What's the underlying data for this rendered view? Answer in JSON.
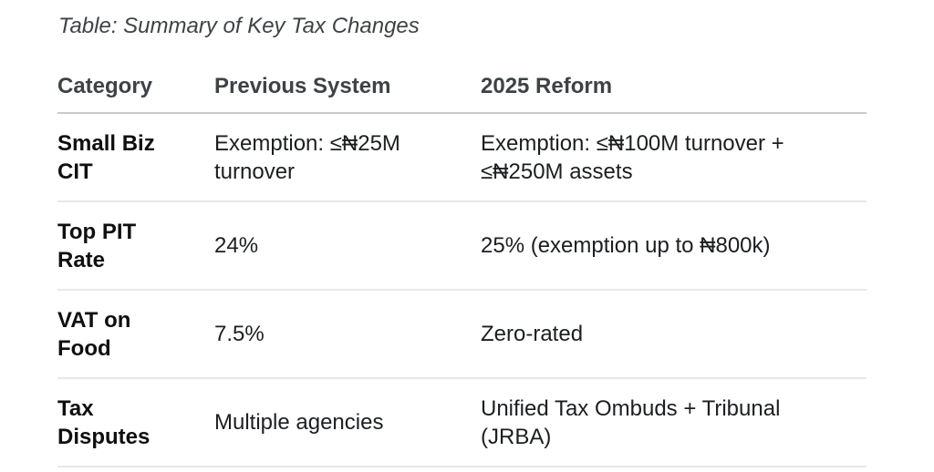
{
  "title": "Table: Summary of Key Tax Changes",
  "table": {
    "columns": {
      "category": "Category",
      "previous": "Previous System",
      "reform": "2025 Reform"
    },
    "rows": [
      {
        "category": "Small Biz\nCIT",
        "previous": "Exemption: ≤₦25M\nturnover",
        "reform": "Exemption: ≤₦100M turnover +\n≤₦250M assets"
      },
      {
        "category": "Top PIT\nRate",
        "previous": "24%",
        "reform": "25% (exemption up to ₦800k)"
      },
      {
        "category": "VAT on\nFood",
        "previous": "7.5%",
        "reform": "Zero-rated"
      },
      {
        "category": "Tax\nDisputes",
        "previous": "Multiple agencies",
        "reform": "Unified Tax Ombuds + Tribunal\n(JRBA)"
      }
    ]
  },
  "colors": {
    "background": "#ffffff",
    "title_text": "#3f4245",
    "header_text": "#3e4246",
    "category_text": "#0f0f0f",
    "body_text": "#1c1e21",
    "header_divider": "#c9cacc",
    "row_divider": "#e8e8e8"
  }
}
